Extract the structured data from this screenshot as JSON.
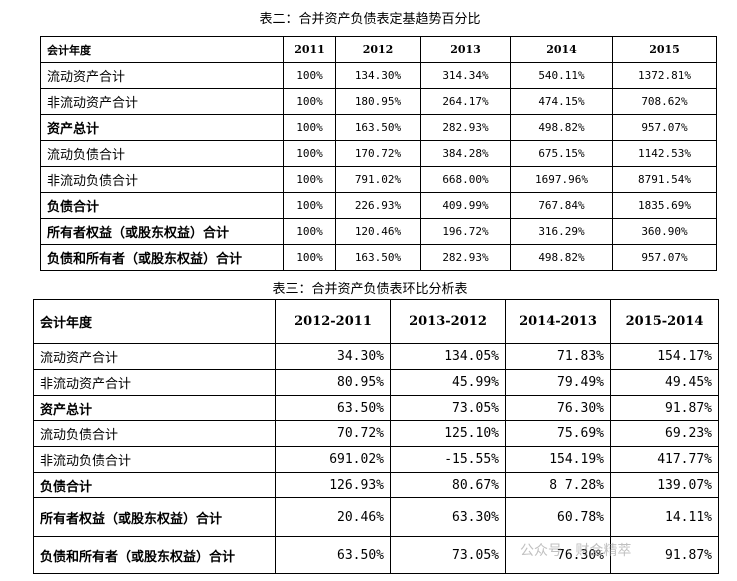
{
  "table2": {
    "title": "表二：合并资产负债表定基趋势百分比",
    "header": [
      "会计年度",
      "2011",
      "2012",
      "2013",
      "2014",
      "2015"
    ],
    "rows": [
      [
        "流动资产合计",
        "100%",
        "134.30%",
        "314.34%",
        "540.11%",
        "1372.81%"
      ],
      [
        "非流动资产合计",
        "100%",
        "180.95%",
        "264.17%",
        "474.15%",
        "708.62%"
      ],
      [
        "资产总计",
        "100%",
        "163.50%",
        "282.93%",
        "498.82%",
        "957.07%"
      ],
      [
        "流动负债合计",
        "100%",
        "170.72%",
        "384.28%",
        "675.15%",
        "1142.53%"
      ],
      [
        "非流动负债合计",
        "100%",
        "791.02%",
        "668.00%",
        "1697.96%",
        "8791.54%"
      ],
      [
        "负债合计",
        "100%",
        "226.93%",
        "409.99%",
        "767.84%",
        "1835.69%"
      ],
      [
        "所有者权益（或股东权益）合计",
        "100%",
        "120.46%",
        "196.72%",
        "316.29%",
        "360.90%"
      ],
      [
        "负债和所有者（或股东权益）合计",
        "100%",
        "163.50%",
        "282.93%",
        "498.82%",
        "957.07%"
      ]
    ]
  },
  "table3": {
    "title": "表三：合并资产负债表环比分析表",
    "header": [
      "会计年度",
      "2012-2011",
      "2013-2012",
      "2014-2013",
      "2015-2014"
    ],
    "rows": [
      [
        "流动资产合计",
        "34.30%",
        "134.05%",
        "71.83%",
        "154.17%"
      ],
      [
        "非流动资产合计",
        "80.95%",
        "45.99%",
        "79.49%",
        "49.45%"
      ],
      [
        "资产总计",
        "63.50%",
        "73.05%",
        "76.30%",
        "91.87%"
      ],
      [
        "流动负债合计",
        "70.72%",
        "125.10%",
        "75.69%",
        "69.23%"
      ],
      [
        "非流动负债合计",
        "691.02%",
        "-15.55%",
        "154.19%",
        "417.77%"
      ],
      [
        "负债合计",
        "126.93%",
        "80.67%",
        "8 7.28%",
        "139.07%"
      ],
      [
        "所有者权益（或股东权益）合计",
        "20.46%",
        "63.30%",
        "60.78%",
        "14.11%"
      ],
      [
        "负债和所有者（或股东权益）合计",
        "63.50%",
        "73.05%",
        "76.30%",
        "91.87%"
      ]
    ]
  },
  "watermark": "公众号 · 财会精萃"
}
